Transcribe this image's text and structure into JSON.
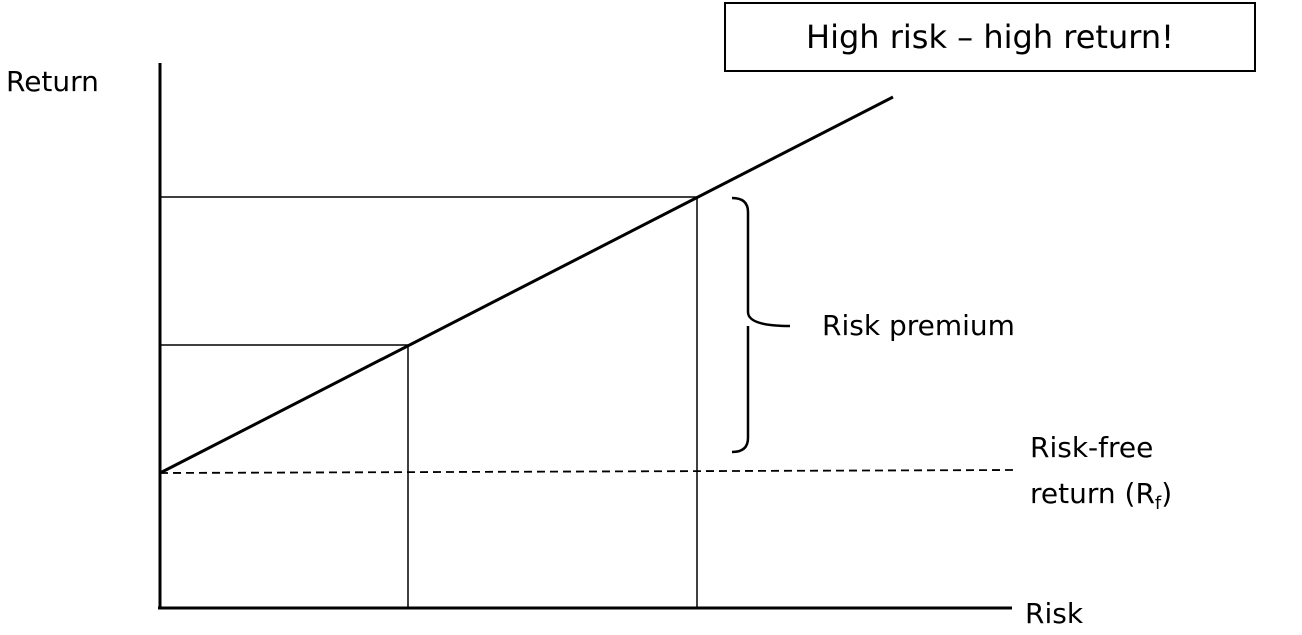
{
  "labels": {
    "y_axis": "Return",
    "x_axis": "Risk",
    "risk_premium": "Risk premium",
    "risk_free_line1": "Risk-free",
    "risk_free_line2_prefix": "return (R",
    "risk_free_subscript": "f",
    "risk_free_line2_suffix": ")"
  },
  "callout": {
    "text": "High risk – high return!"
  },
  "colors": {
    "ink": "#000000",
    "background": "#ffffff"
  }
}
